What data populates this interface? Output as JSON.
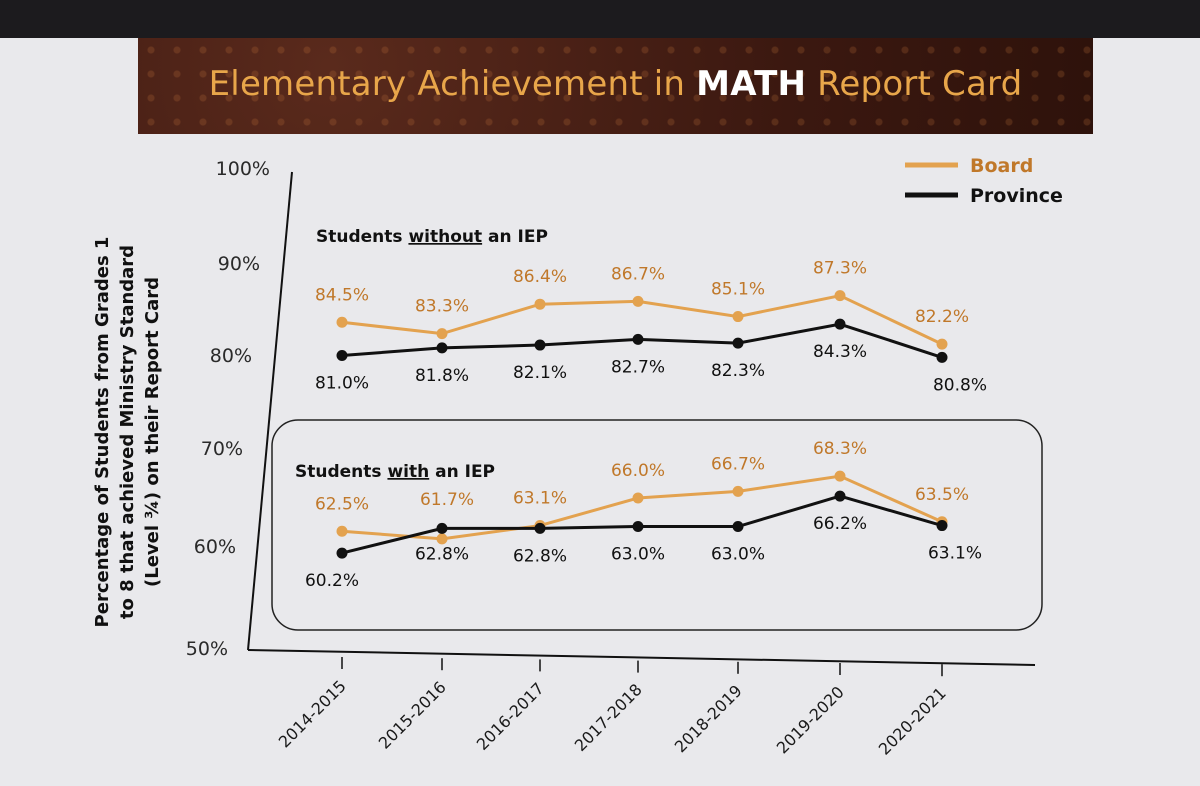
{
  "title": {
    "prefix": "Elementary Achievement in ",
    "emphasis": "MATH",
    "suffix": " Report Card"
  },
  "colors": {
    "board": "#e3a24f",
    "province": "#111111",
    "board_label": "#c0782a",
    "title_text": "#e8a64a"
  },
  "chart_data": {
    "type": "line",
    "ylabel": "Percentage of Students from Grades 1 to 8 that achieved Ministry Standard (Level ¾) on their Report Card",
    "ylabel_lines": [
      "Percentage of Students from Grades 1",
      "to 8 that achieved Ministry Standard",
      "(Level ¾) on their Report Card"
    ],
    "ylim": [
      50,
      100
    ],
    "yticks": [
      "50%",
      "60%",
      "70%",
      "80%",
      "90%",
      "100%"
    ],
    "ytick_values": [
      50,
      60,
      70,
      80,
      90,
      100
    ],
    "categories": [
      "2014-2015",
      "2015-2016",
      "2016-2017",
      "2017-2018",
      "2018-2019",
      "2019-2020",
      "2020-2021"
    ],
    "legend": {
      "position": "top-right",
      "items": [
        {
          "name": "Board",
          "color_key": "board"
        },
        {
          "name": "Province",
          "color_key": "province"
        }
      ]
    },
    "groups": [
      {
        "label_prefix": "Students ",
        "label_underline": "without",
        "label_suffix": " an IEP",
        "boxed": false,
        "series": [
          {
            "name": "Board",
            "values": [
              84.5,
              83.3,
              86.4,
              86.7,
              85.1,
              87.3,
              82.2
            ],
            "labels": [
              "84.5%",
              "83.3%",
              "86.4%",
              "86.7%",
              "85.1%",
              "87.3%",
              "82.2%"
            ]
          },
          {
            "name": "Province",
            "values": [
              81.0,
              81.8,
              82.1,
              82.7,
              82.3,
              84.3,
              80.8
            ],
            "labels": [
              "81.0%",
              "81.8%",
              "82.1%",
              "82.7%",
              "82.3%",
              "84.3%",
              "80.8%"
            ]
          }
        ]
      },
      {
        "label_prefix": "Students ",
        "label_underline": "with",
        "label_suffix": " an IEP",
        "boxed": true,
        "series": [
          {
            "name": "Board",
            "values": [
              62.5,
              61.7,
              63.1,
              66.0,
              66.7,
              68.3,
              63.5
            ],
            "labels": [
              "62.5%",
              "61.7%",
              "63.1%",
              "66.0%",
              "66.7%",
              "68.3%",
              "63.5%"
            ]
          },
          {
            "name": "Province",
            "values": [
              60.2,
              62.8,
              62.8,
              63.0,
              63.0,
              66.2,
              63.1
            ],
            "labels": [
              "60.2%",
              "62.8%",
              "62.8%",
              "63.0%",
              "63.0%",
              "66.2%",
              "63.1%"
            ]
          }
        ]
      }
    ]
  }
}
